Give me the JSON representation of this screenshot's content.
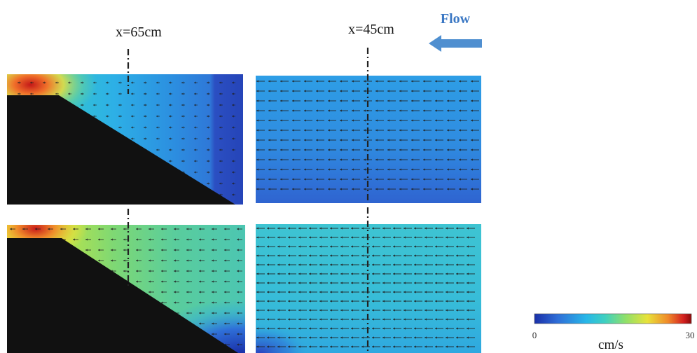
{
  "labels": {
    "section_left": "x=65cm",
    "section_right": "x=45cm",
    "flow": "Flow"
  },
  "colorbar": {
    "min": "0",
    "max": "30",
    "unit": "cm/s",
    "stops": [
      "#1a2fa8",
      "#2f6fd8",
      "#27b7e8",
      "#3fd0c0",
      "#8fe06a",
      "#e8e23a",
      "#f08a2a",
      "#d42020",
      "#8a0a0a"
    ]
  },
  "colors": {
    "ramp": "#111111",
    "flow_arrow": "#4f8fd0",
    "section_line": "#222222",
    "vector": "#2a2a2a"
  },
  "icons": {
    "flow_arrow": "left-arrow-icon"
  }
}
